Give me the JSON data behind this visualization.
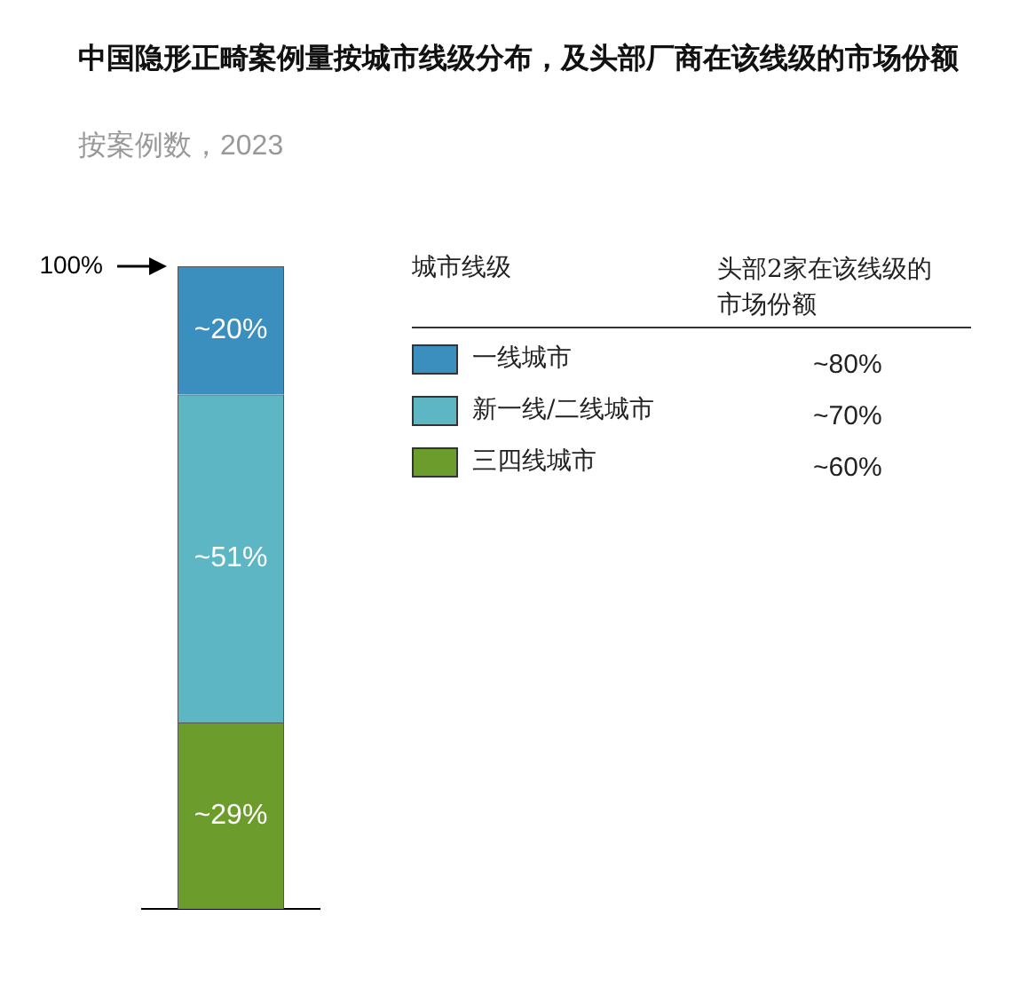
{
  "chart_data": {
    "type": "bar",
    "stacked": true,
    "title": "中国隐形正畸案例量按城市线级分布，及头部厂商在该线级的市场份额",
    "subtitle": "按案例数，2023",
    "legend_title": "城市线级",
    "legend": "right",
    "categories": [
      null
    ],
    "ylim": [
      0,
      100
    ],
    "tick_labels": false,
    "grid": false,
    "series": [
      {
        "name": "三四线城市",
        "color": "#6c9c2c",
        "values": [
          29
        ],
        "value_labels": [
          "~29%"
        ]
      },
      {
        "name": "新一线/二线城市",
        "color": "#5cb6c4",
        "values": [
          51
        ],
        "value_labels": [
          "~51%"
        ]
      },
      {
        "name": "一线城市",
        "color": "#3a8fbf",
        "values": [
          20
        ],
        "value_labels": [
          "~20%"
        ]
      }
    ],
    "annotations": [
      "100%",
      "头部2家在该线级的市场份额",
      "~60%",
      "~70%",
      "~80%"
    ]
  }
}
